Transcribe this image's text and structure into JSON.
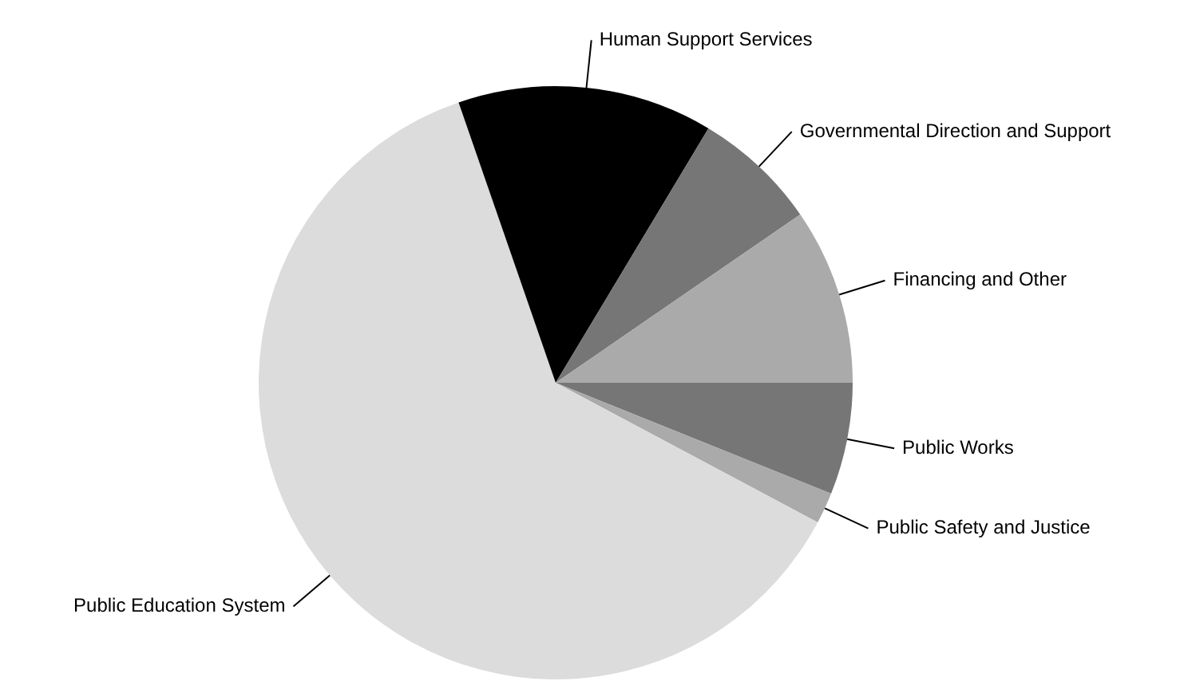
{
  "chart_data": {
    "type": "pie",
    "categories": [
      "Public Works",
      "Public Safety and Justice",
      "Public Education System",
      "Human Support Services",
      "Governmental Direction and Support",
      "Financing and Other"
    ],
    "values": [
      6.1,
      1.7,
      61.9,
      13.9,
      6.8,
      9.6
    ],
    "colors": [
      "#767676",
      "#aaaaaa",
      "#dcdcdc",
      "#000000",
      "#767676",
      "#aaaaaa"
    ],
    "legend": false
  }
}
